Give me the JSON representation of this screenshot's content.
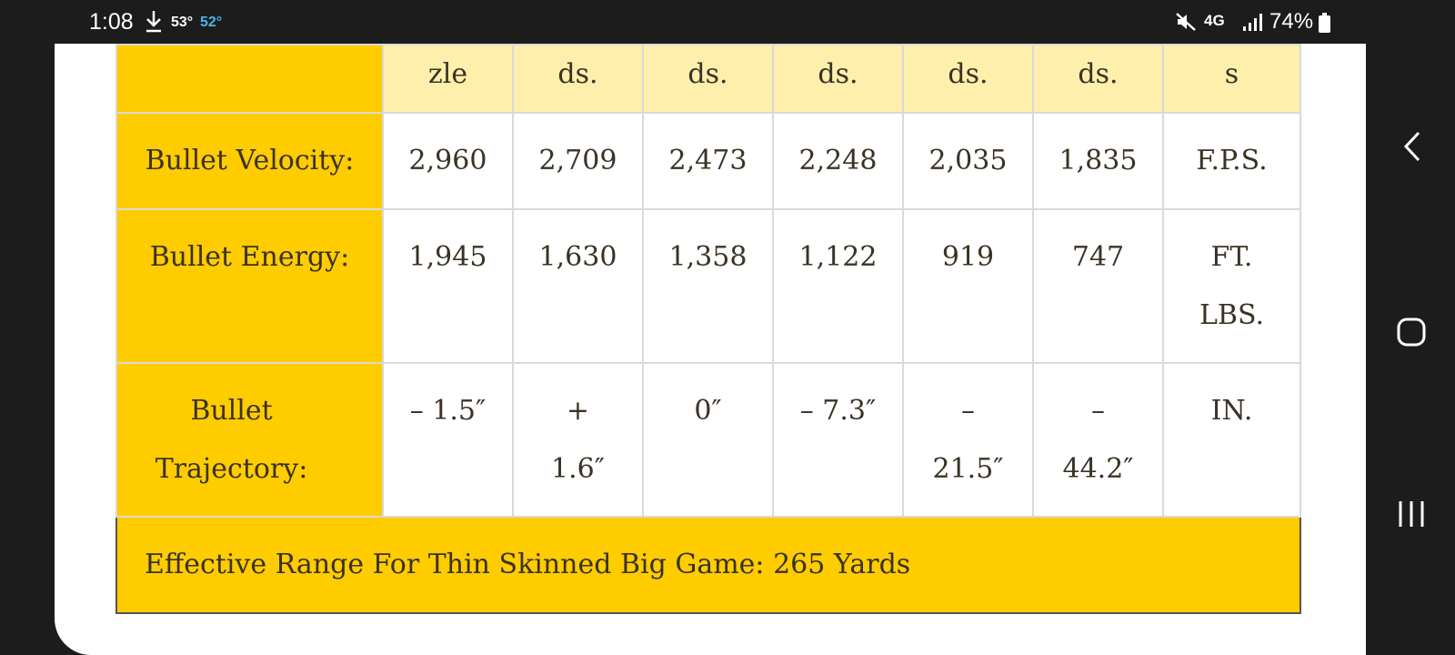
{
  "status_bar": {
    "time": "1:08",
    "temp_1": "53°",
    "temp_2": "52°",
    "network": "4G",
    "battery": "74%"
  },
  "table": {
    "header_cells": [
      "zle",
      "ds.",
      "ds.",
      "ds.",
      "ds.",
      "ds.",
      "s"
    ],
    "rows": [
      {
        "label": "Bullet Velocity:",
        "values": [
          "2,960",
          "2,709",
          "2,473",
          "2,248",
          "2,035",
          "1,835"
        ],
        "unit": "F.P.S."
      },
      {
        "label": "Bullet Energy:",
        "values": [
          "1,945",
          "1,630",
          "1,358",
          "1,122",
          "919",
          "747"
        ],
        "unit": "FT. LBS."
      },
      {
        "label": "Bullet Trajectory:",
        "values": [
          "– 1.5″",
          "+ 1.6″",
          "0″",
          "– 7.3″",
          "– 21.5″",
          "– 44.2″"
        ],
        "unit": "IN."
      }
    ],
    "footer": "Effective Range For Thin Skinned Big Game: 265 Yards"
  },
  "colors": {
    "label_bg": "#ffcc00",
    "header_bg": "#ffefad",
    "text": "#3a3224"
  }
}
